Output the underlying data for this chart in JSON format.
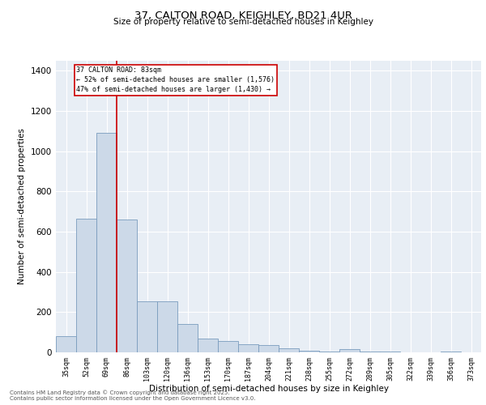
{
  "title1": "37, CALTON ROAD, KEIGHLEY, BD21 4UR",
  "title2": "Size of property relative to semi-detached houses in Keighley",
  "xlabel": "Distribution of semi-detached houses by size in Keighley",
  "ylabel": "Number of semi-detached properties",
  "categories": [
    "35sqm",
    "52sqm",
    "69sqm",
    "86sqm",
    "103sqm",
    "120sqm",
    "136sqm",
    "153sqm",
    "170sqm",
    "187sqm",
    "204sqm",
    "221sqm",
    "238sqm",
    "255sqm",
    "272sqm",
    "289sqm",
    "305sqm",
    "322sqm",
    "339sqm",
    "356sqm",
    "373sqm"
  ],
  "values": [
    80,
    665,
    1090,
    660,
    255,
    255,
    140,
    70,
    55,
    40,
    35,
    20,
    10,
    5,
    18,
    5,
    5,
    0,
    0,
    5,
    0
  ],
  "bar_color": "#ccd9e8",
  "bar_edge_color": "#7a9cbe",
  "vline_x": 2.5,
  "vline_color": "#cc0000",
  "annotation_text1": "37 CALTON ROAD: 83sqm",
  "annotation_text2": "← 52% of semi-detached houses are smaller (1,576)",
  "annotation_text3": "47% of semi-detached houses are larger (1,430) →",
  "annotation_box_color": "#cc0000",
  "background_color": "#e8eef5",
  "ylim": [
    0,
    1450
  ],
  "yticks": [
    0,
    200,
    400,
    600,
    800,
    1000,
    1200,
    1400
  ],
  "footer1": "Contains HM Land Registry data © Crown copyright and database right 2025.",
  "footer2": "Contains public sector information licensed under the Open Government Licence v3.0."
}
